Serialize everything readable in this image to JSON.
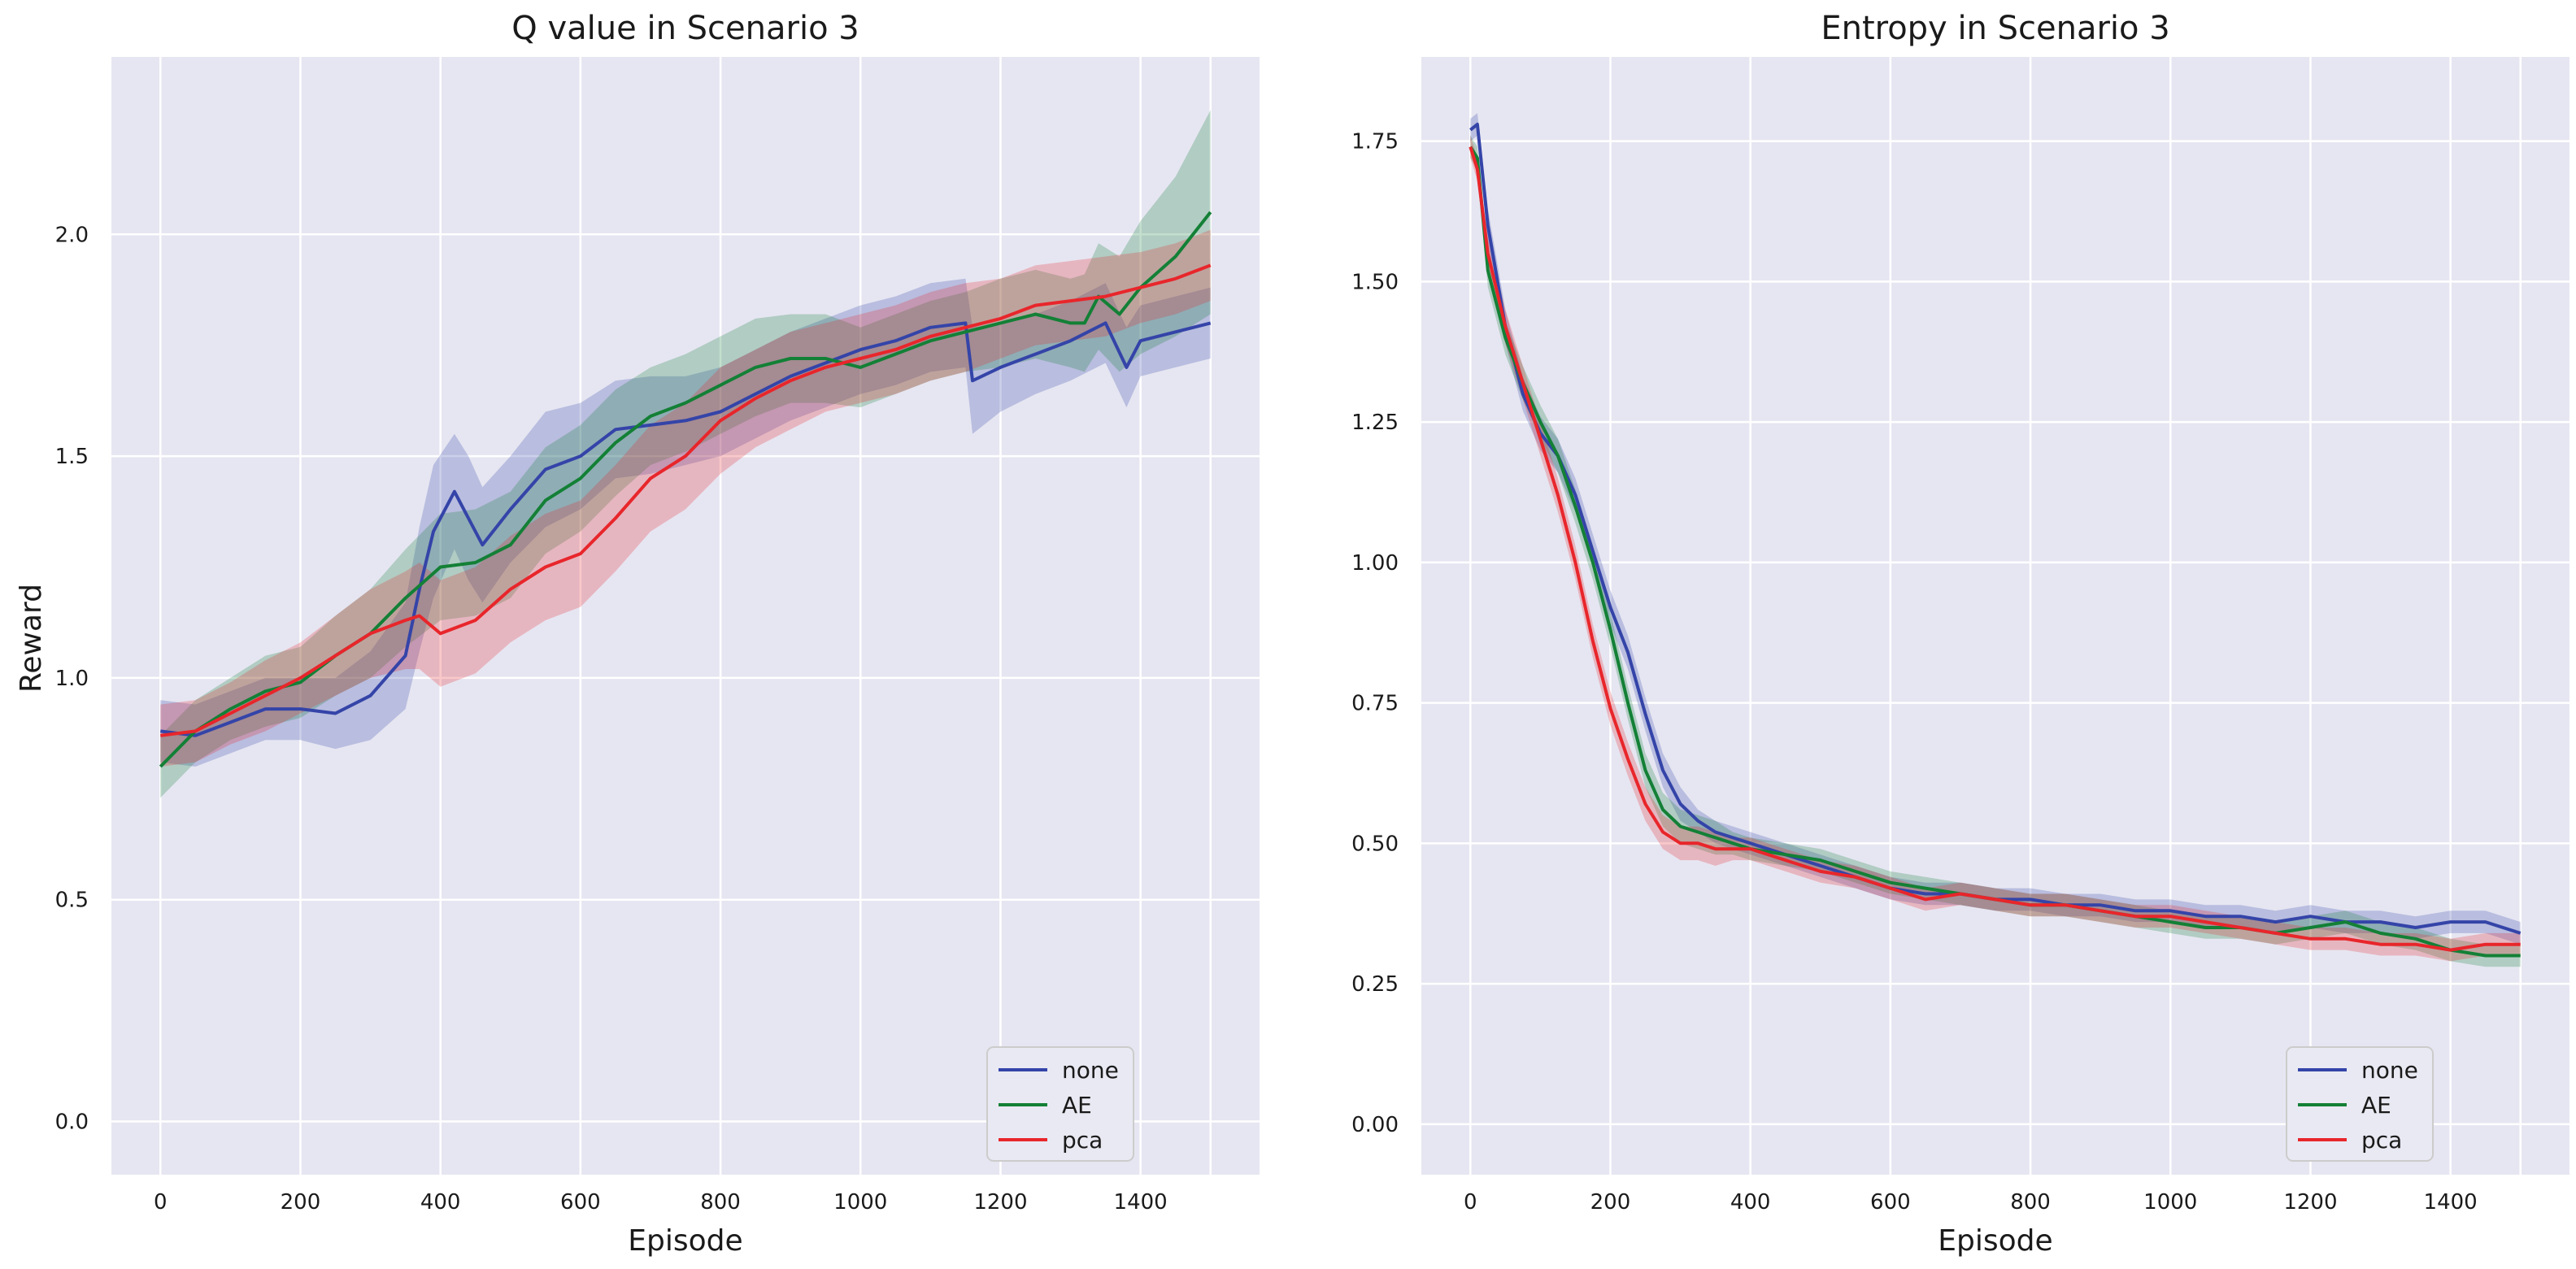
{
  "chart_data": [
    {
      "type": "line",
      "title": "Q value in Scenario 3",
      "xlabel": "Episode",
      "ylabel": "Reward",
      "xlim": [
        -70,
        1570
      ],
      "ylim": [
        -0.12,
        2.4
      ],
      "xticks": [
        0,
        200,
        400,
        600,
        800,
        1000,
        1200,
        1400
      ],
      "xtick_labels": [
        "0",
        "200",
        "400",
        "600",
        "800",
        "1000",
        "1200",
        "1400"
      ],
      "yticks": [
        0.0,
        0.5,
        1.0,
        1.5,
        2.0
      ],
      "ytick_labels": [
        "0.0",
        "0.5",
        "1.0",
        "1.5",
        "2.0"
      ],
      "grid": true,
      "legend_position": "bottom-right",
      "legend": [
        "none",
        "AE",
        "pca"
      ],
      "series": [
        {
          "name": "none",
          "color": "#3444a8",
          "x": [
            0,
            50,
            100,
            150,
            200,
            250,
            300,
            350,
            370,
            390,
            420,
            440,
            460,
            500,
            550,
            600,
            650,
            700,
            750,
            800,
            850,
            900,
            950,
            1000,
            1050,
            1100,
            1150,
            1160,
            1200,
            1250,
            1300,
            1350,
            1380,
            1400,
            1450,
            1500
          ],
          "y": [
            0.88,
            0.87,
            0.9,
            0.93,
            0.93,
            0.92,
            0.96,
            1.05,
            1.2,
            1.33,
            1.42,
            1.36,
            1.3,
            1.38,
            1.47,
            1.5,
            1.56,
            1.57,
            1.58,
            1.6,
            1.64,
            1.68,
            1.71,
            1.74,
            1.76,
            1.79,
            1.8,
            1.67,
            1.7,
            1.73,
            1.76,
            1.8,
            1.7,
            1.76,
            1.78,
            1.8
          ],
          "band": [
            0.07,
            0.07,
            0.07,
            0.07,
            0.07,
            0.08,
            0.1,
            0.12,
            0.14,
            0.15,
            0.13,
            0.14,
            0.13,
            0.12,
            0.13,
            0.12,
            0.11,
            0.11,
            0.1,
            0.1,
            0.1,
            0.1,
            0.1,
            0.1,
            0.1,
            0.1,
            0.1,
            0.12,
            0.1,
            0.09,
            0.09,
            0.09,
            0.09,
            0.08,
            0.08,
            0.08
          ]
        },
        {
          "name": "AE",
          "color": "#138036",
          "x": [
            0,
            50,
            100,
            150,
            200,
            250,
            300,
            350,
            400,
            450,
            500,
            550,
            600,
            650,
            700,
            750,
            800,
            850,
            900,
            950,
            1000,
            1050,
            1100,
            1150,
            1200,
            1250,
            1300,
            1320,
            1340,
            1370,
            1400,
            1450,
            1500
          ],
          "y": [
            0.8,
            0.88,
            0.93,
            0.97,
            0.99,
            1.05,
            1.1,
            1.18,
            1.25,
            1.26,
            1.3,
            1.4,
            1.45,
            1.53,
            1.59,
            1.62,
            1.66,
            1.7,
            1.72,
            1.72,
            1.7,
            1.73,
            1.76,
            1.78,
            1.8,
            1.82,
            1.8,
            1.8,
            1.86,
            1.82,
            1.88,
            1.95,
            2.05
          ],
          "band": [
            0.07,
            0.07,
            0.07,
            0.08,
            0.08,
            0.09,
            0.1,
            0.11,
            0.12,
            0.12,
            0.12,
            0.12,
            0.12,
            0.12,
            0.11,
            0.11,
            0.11,
            0.11,
            0.1,
            0.1,
            0.09,
            0.09,
            0.09,
            0.09,
            0.1,
            0.1,
            0.1,
            0.11,
            0.12,
            0.13,
            0.15,
            0.18,
            0.23
          ]
        },
        {
          "name": "pca",
          "color": "#e8262b",
          "x": [
            0,
            50,
            100,
            150,
            200,
            250,
            300,
            350,
            370,
            400,
            450,
            500,
            550,
            600,
            650,
            700,
            750,
            800,
            850,
            900,
            950,
            1000,
            1050,
            1100,
            1150,
            1200,
            1250,
            1300,
            1350,
            1400,
            1450,
            1500
          ],
          "y": [
            0.87,
            0.88,
            0.92,
            0.96,
            1.0,
            1.05,
            1.1,
            1.13,
            1.14,
            1.1,
            1.13,
            1.2,
            1.25,
            1.28,
            1.36,
            1.45,
            1.5,
            1.58,
            1.63,
            1.67,
            1.7,
            1.72,
            1.74,
            1.77,
            1.79,
            1.81,
            1.84,
            1.85,
            1.86,
            1.88,
            1.9,
            1.93
          ],
          "band": [
            0.07,
            0.07,
            0.07,
            0.08,
            0.08,
            0.09,
            0.1,
            0.11,
            0.12,
            0.12,
            0.12,
            0.12,
            0.12,
            0.12,
            0.12,
            0.12,
            0.12,
            0.12,
            0.11,
            0.11,
            0.1,
            0.1,
            0.1,
            0.1,
            0.1,
            0.09,
            0.09,
            0.09,
            0.09,
            0.08,
            0.08,
            0.08
          ]
        }
      ]
    },
    {
      "type": "line",
      "title": "Entropy in Scenario 3",
      "xlabel": "Episode",
      "ylabel": "",
      "xlim": [
        -70,
        1570
      ],
      "ylim": [
        -0.09,
        1.9
      ],
      "xticks": [
        0,
        200,
        400,
        600,
        800,
        1000,
        1200,
        1400
      ],
      "xtick_labels": [
        "0",
        "200",
        "400",
        "600",
        "800",
        "1000",
        "1200",
        "1400"
      ],
      "yticks": [
        0.0,
        0.25,
        0.5,
        0.75,
        1.0,
        1.25,
        1.5,
        1.75
      ],
      "ytick_labels": [
        "0.00",
        "0.25",
        "0.50",
        "0.75",
        "1.00",
        "1.25",
        "1.50",
        "1.75"
      ],
      "grid": true,
      "legend_position": "bottom-right",
      "legend": [
        "none",
        "AE",
        "pca"
      ],
      "series": [
        {
          "name": "none",
          "color": "#3444a8",
          "x": [
            0,
            10,
            25,
            50,
            75,
            100,
            125,
            150,
            175,
            200,
            225,
            250,
            275,
            300,
            325,
            350,
            375,
            400,
            450,
            500,
            550,
            600,
            650,
            700,
            750,
            800,
            850,
            900,
            950,
            1000,
            1050,
            1100,
            1150,
            1200,
            1250,
            1300,
            1350,
            1400,
            1450,
            1500
          ],
          "y": [
            1.77,
            1.78,
            1.6,
            1.42,
            1.3,
            1.23,
            1.19,
            1.12,
            1.02,
            0.92,
            0.84,
            0.73,
            0.63,
            0.57,
            0.54,
            0.52,
            0.51,
            0.5,
            0.48,
            0.46,
            0.44,
            0.42,
            0.41,
            0.41,
            0.4,
            0.4,
            0.39,
            0.39,
            0.38,
            0.38,
            0.37,
            0.37,
            0.36,
            0.37,
            0.36,
            0.36,
            0.35,
            0.36,
            0.36,
            0.34
          ],
          "band": [
            0.02,
            0.02,
            0.03,
            0.03,
            0.03,
            0.03,
            0.03,
            0.03,
            0.03,
            0.03,
            0.03,
            0.03,
            0.03,
            0.03,
            0.02,
            0.02,
            0.02,
            0.02,
            0.02,
            0.02,
            0.02,
            0.02,
            0.02,
            0.02,
            0.02,
            0.02,
            0.02,
            0.02,
            0.02,
            0.02,
            0.02,
            0.02,
            0.02,
            0.02,
            0.02,
            0.02,
            0.02,
            0.02,
            0.02,
            0.02
          ]
        },
        {
          "name": "AE",
          "color": "#138036",
          "x": [
            0,
            10,
            25,
            50,
            75,
            100,
            125,
            150,
            175,
            200,
            225,
            250,
            275,
            300,
            325,
            350,
            375,
            400,
            450,
            500,
            550,
            600,
            650,
            700,
            750,
            800,
            850,
            900,
            950,
            1000,
            1050,
            1100,
            1150,
            1200,
            1250,
            1300,
            1350,
            1400,
            1450,
            1500
          ],
          "y": [
            1.74,
            1.72,
            1.52,
            1.4,
            1.32,
            1.25,
            1.19,
            1.1,
            1.0,
            0.88,
            0.75,
            0.63,
            0.56,
            0.53,
            0.52,
            0.51,
            0.5,
            0.49,
            0.48,
            0.47,
            0.45,
            0.43,
            0.42,
            0.41,
            0.4,
            0.39,
            0.39,
            0.38,
            0.37,
            0.36,
            0.35,
            0.35,
            0.34,
            0.35,
            0.36,
            0.34,
            0.33,
            0.31,
            0.3,
            0.3
          ],
          "band": [
            0.02,
            0.02,
            0.03,
            0.03,
            0.03,
            0.03,
            0.03,
            0.03,
            0.03,
            0.03,
            0.03,
            0.03,
            0.03,
            0.03,
            0.03,
            0.03,
            0.02,
            0.02,
            0.02,
            0.02,
            0.02,
            0.02,
            0.02,
            0.02,
            0.02,
            0.02,
            0.02,
            0.02,
            0.02,
            0.02,
            0.02,
            0.02,
            0.02,
            0.02,
            0.02,
            0.02,
            0.02,
            0.02,
            0.02,
            0.02
          ]
        },
        {
          "name": "pca",
          "color": "#e8262b",
          "x": [
            0,
            10,
            25,
            50,
            75,
            100,
            125,
            150,
            175,
            200,
            225,
            250,
            275,
            300,
            325,
            350,
            375,
            400,
            450,
            500,
            550,
            600,
            650,
            700,
            750,
            800,
            850,
            900,
            950,
            1000,
            1050,
            1100,
            1150,
            1200,
            1250,
            1300,
            1350,
            1400,
            1450,
            1500
          ],
          "y": [
            1.74,
            1.7,
            1.55,
            1.42,
            1.32,
            1.22,
            1.12,
            1.0,
            0.86,
            0.74,
            0.65,
            0.57,
            0.52,
            0.5,
            0.5,
            0.49,
            0.49,
            0.49,
            0.47,
            0.45,
            0.44,
            0.42,
            0.4,
            0.41,
            0.4,
            0.39,
            0.39,
            0.38,
            0.37,
            0.37,
            0.36,
            0.35,
            0.34,
            0.33,
            0.33,
            0.32,
            0.32,
            0.31,
            0.32,
            0.32
          ],
          "band": [
            0.02,
            0.02,
            0.03,
            0.03,
            0.03,
            0.03,
            0.03,
            0.03,
            0.03,
            0.03,
            0.03,
            0.03,
            0.03,
            0.03,
            0.03,
            0.03,
            0.02,
            0.02,
            0.02,
            0.02,
            0.02,
            0.02,
            0.02,
            0.02,
            0.02,
            0.02,
            0.02,
            0.02,
            0.02,
            0.02,
            0.02,
            0.02,
            0.02,
            0.02,
            0.02,
            0.02,
            0.02,
            0.02,
            0.02,
            0.02
          ]
        }
      ]
    }
  ]
}
